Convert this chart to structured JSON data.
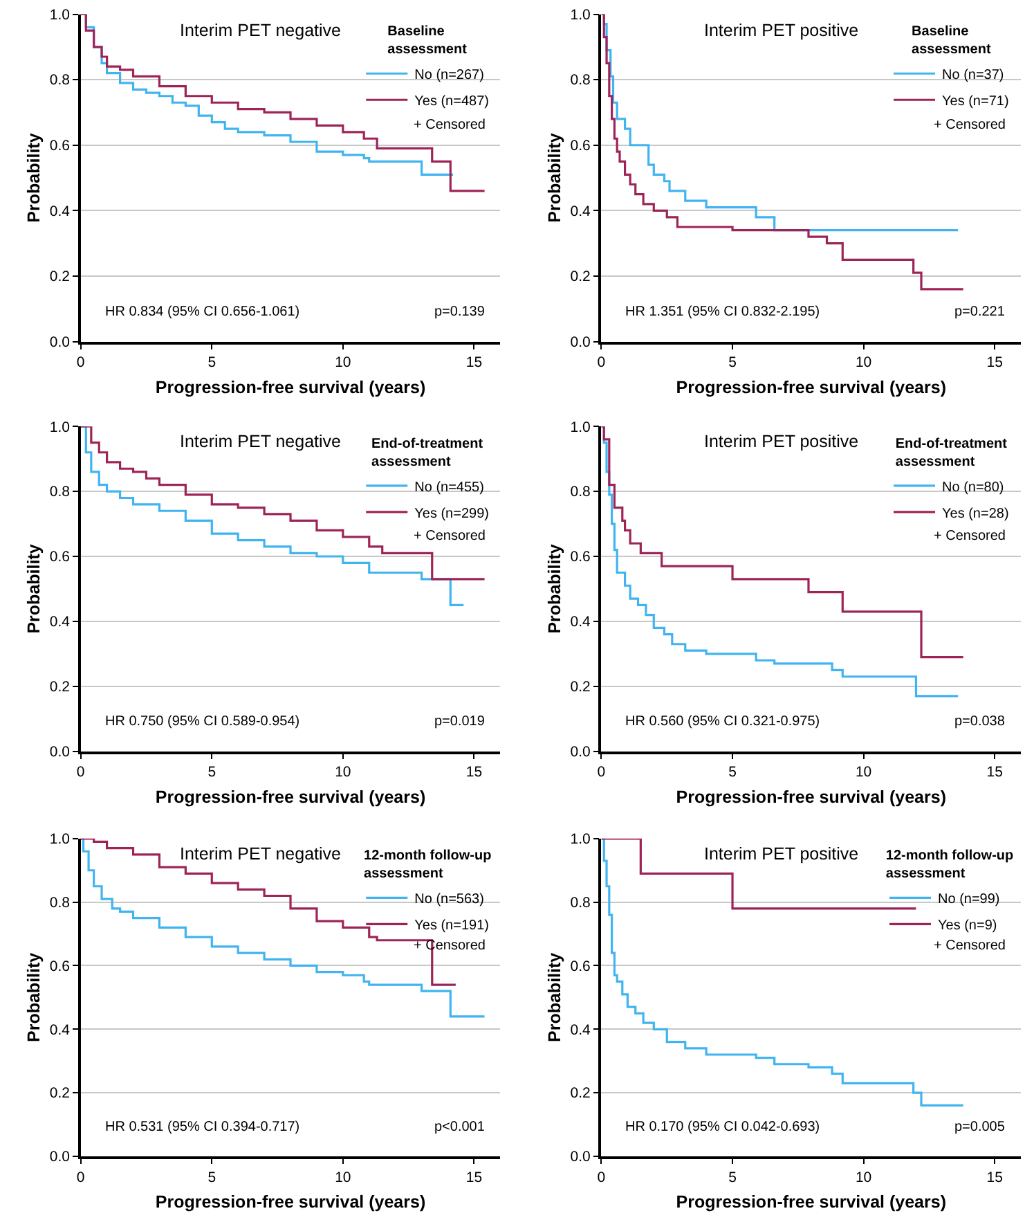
{
  "chart_data": [
    {
      "type": "step",
      "title": "Interim PET negative",
      "xlabel": "Progression-free survival (years)",
      "ylabel": "Probability",
      "legend_title": "Baseline assessment",
      "legend": "top right",
      "grid": "y",
      "marker": "none",
      "line_style": "solid",
      "xlim": [
        0,
        16
      ],
      "xticks": [
        0,
        5,
        10,
        15
      ],
      "ylim": [
        0,
        1
      ],
      "yticks": [
        {
          "value": 0,
          "label": "0.0"
        },
        {
          "value": 0.2,
          "label": "0.2"
        },
        {
          "value": 0.4,
          "label": "0.4"
        },
        {
          "value": 0.6,
          "label": "0.6"
        },
        {
          "value": 0.8,
          "label": "0.8"
        },
        {
          "value": 1,
          "label": "1.0"
        }
      ],
      "annotations": [
        "+ Censored",
        "HR 0.834 (95% CI 0.656-1.061)",
        "p=0.139"
      ],
      "series": [
        {
          "name": "No (n=267)",
          "color": "#40b4f0",
          "x": [
            0,
            0.2,
            0.5,
            0.8,
            1.0,
            1.5,
            2,
            2.5,
            3,
            3.5,
            4,
            4.5,
            5,
            5.5,
            6,
            7,
            8,
            9,
            10,
            10.8,
            11,
            12,
            13,
            14.2
          ],
          "values": [
            1,
            0.96,
            0.9,
            0.85,
            0.82,
            0.79,
            0.77,
            0.76,
            0.75,
            0.73,
            0.72,
            0.69,
            0.67,
            0.65,
            0.64,
            0.63,
            0.61,
            0.58,
            0.57,
            0.56,
            0.55,
            0.55,
            0.51,
            0.51
          ]
        },
        {
          "name": "Yes (n=487)",
          "color": "#9e2458",
          "x": [
            0,
            0.2,
            0.5,
            0.8,
            1,
            1.5,
            2,
            3,
            4,
            5,
            6,
            7,
            8,
            9,
            10,
            10.8,
            11.3,
            12,
            13.4,
            14.1,
            15.4
          ],
          "values": [
            1,
            0.95,
            0.9,
            0.87,
            0.84,
            0.83,
            0.81,
            0.78,
            0.75,
            0.73,
            0.71,
            0.7,
            0.68,
            0.66,
            0.64,
            0.62,
            0.59,
            0.59,
            0.55,
            0.46,
            0.46
          ]
        }
      ]
    },
    {
      "type": "step",
      "title": "Interim PET positive",
      "xlabel": "Progression-free survival (years)",
      "ylabel": "Probability",
      "legend_title": "Baseline assessment",
      "legend": "top right",
      "grid": "y",
      "marker": "none",
      "line_style": "solid",
      "xlim": [
        0,
        16
      ],
      "xticks": [
        0,
        5,
        10,
        15
      ],
      "ylim": [
        0,
        1
      ],
      "yticks": [
        {
          "value": 0,
          "label": "0.0"
        },
        {
          "value": 0.2,
          "label": "0.2"
        },
        {
          "value": 0.4,
          "label": "0.4"
        },
        {
          "value": 0.6,
          "label": "0.6"
        },
        {
          "value": 0.8,
          "label": "0.8"
        },
        {
          "value": 1,
          "label": "1.0"
        }
      ],
      "annotations": [
        "+ Censored",
        "HR 1.351 (95% CI 0.832-2.195)",
        "p=0.221"
      ],
      "series": [
        {
          "name": "No (n=37)",
          "color": "#40b4f0",
          "x": [
            0,
            0.1,
            0.2,
            0.35,
            0.45,
            0.6,
            0.9,
            1.1,
            1.8,
            2.0,
            2.4,
            2.6,
            3.2,
            4.0,
            5.9,
            6.6,
            13.6
          ],
          "values": [
            1,
            0.97,
            0.89,
            0.81,
            0.73,
            0.68,
            0.65,
            0.6,
            0.54,
            0.51,
            0.49,
            0.46,
            0.43,
            0.41,
            0.38,
            0.34,
            0.34
          ]
        },
        {
          "name": "Yes (n=71)",
          "color": "#9e2458",
          "x": [
            0,
            0.1,
            0.2,
            0.3,
            0.4,
            0.5,
            0.6,
            0.7,
            0.9,
            1.1,
            1.3,
            1.6,
            2.0,
            2.5,
            2.9,
            5.0,
            7.9,
            8.6,
            9.2,
            11.9,
            12.2,
            13.8
          ],
          "values": [
            1,
            0.93,
            0.85,
            0.75,
            0.68,
            0.62,
            0.58,
            0.55,
            0.51,
            0.48,
            0.45,
            0.42,
            0.4,
            0.38,
            0.35,
            0.34,
            0.32,
            0.3,
            0.25,
            0.21,
            0.16,
            0.16
          ]
        }
      ]
    },
    {
      "type": "step",
      "title": "Interim PET negative",
      "xlabel": "Progression-free survival (years)",
      "ylabel": "Probability",
      "legend_title": "End-of-treatment assessment",
      "legend": "top right",
      "grid": "y",
      "marker": "none",
      "line_style": "solid",
      "xlim": [
        0,
        16
      ],
      "xticks": [
        0,
        5,
        10,
        15
      ],
      "ylim": [
        0,
        1
      ],
      "yticks": [
        {
          "value": 0,
          "label": "0.0"
        },
        {
          "value": 0.2,
          "label": "0.2"
        },
        {
          "value": 0.4,
          "label": "0.4"
        },
        {
          "value": 0.6,
          "label": "0.6"
        },
        {
          "value": 0.8,
          "label": "0.8"
        },
        {
          "value": 1,
          "label": "1.0"
        }
      ],
      "annotations": [
        "+ Censored",
        "HR 0.750 (95% CI 0.589-0.954)",
        "p=0.019"
      ],
      "series": [
        {
          "name": "No (n=455)",
          "color": "#40b4f0",
          "x": [
            0,
            0.2,
            0.4,
            0.7,
            1,
            1.5,
            2,
            3,
            4,
            5,
            6,
            7,
            8,
            9,
            10,
            11,
            12,
            13,
            14.1,
            14.6
          ],
          "values": [
            1,
            0.92,
            0.86,
            0.82,
            0.8,
            0.78,
            0.76,
            0.74,
            0.71,
            0.67,
            0.65,
            0.63,
            0.61,
            0.6,
            0.58,
            0.55,
            0.55,
            0.53,
            0.45,
            0.45
          ]
        },
        {
          "name": "Yes (n=299)",
          "color": "#9e2458",
          "x": [
            0,
            0.4,
            0.7,
            1,
            1.5,
            2,
            2.5,
            3,
            4,
            5,
            6,
            7,
            8,
            9,
            10,
            11,
            11.5,
            13.4,
            15.4
          ],
          "values": [
            1,
            0.95,
            0.92,
            0.89,
            0.87,
            0.86,
            0.84,
            0.82,
            0.79,
            0.76,
            0.75,
            0.73,
            0.71,
            0.68,
            0.66,
            0.63,
            0.61,
            0.53,
            0.53
          ]
        }
      ]
    },
    {
      "type": "step",
      "title": "Interim PET positive",
      "xlabel": "Progression-free survival (years)",
      "ylabel": "Probability",
      "legend_title": "End-of-treatment assessment",
      "legend": "top right",
      "grid": "y",
      "marker": "none",
      "line_style": "solid",
      "xlim": [
        0,
        16
      ],
      "xticks": [
        0,
        5,
        10,
        15
      ],
      "ylim": [
        0,
        1
      ],
      "yticks": [
        {
          "value": 0,
          "label": "0.0"
        },
        {
          "value": 0.2,
          "label": "0.2"
        },
        {
          "value": 0.4,
          "label": "0.4"
        },
        {
          "value": 0.6,
          "label": "0.6"
        },
        {
          "value": 0.8,
          "label": "0.8"
        },
        {
          "value": 1,
          "label": "1.0"
        }
      ],
      "annotations": [
        "+ Censored",
        "HR 0.560 (95% CI 0.321-0.975)",
        "p=0.038"
      ],
      "series": [
        {
          "name": "No (n=80)",
          "color": "#40b4f0",
          "x": [
            0,
            0.1,
            0.2,
            0.3,
            0.4,
            0.5,
            0.6,
            0.9,
            1.1,
            1.4,
            1.7,
            2,
            2.4,
            2.7,
            3.2,
            4,
            5.9,
            6.6,
            8.8,
            9.2,
            12,
            13.6
          ],
          "values": [
            1,
            0.95,
            0.86,
            0.79,
            0.7,
            0.62,
            0.55,
            0.51,
            0.47,
            0.45,
            0.42,
            0.38,
            0.36,
            0.33,
            0.31,
            0.3,
            0.28,
            0.27,
            0.25,
            0.23,
            0.17,
            0.17
          ]
        },
        {
          "name": "Yes (n=28)",
          "color": "#9e2458",
          "x": [
            0,
            0.1,
            0.3,
            0.5,
            0.8,
            0.9,
            1.1,
            1.5,
            2.3,
            5.0,
            7.9,
            9.2,
            12.2,
            13.8
          ],
          "values": [
            1,
            0.96,
            0.82,
            0.75,
            0.71,
            0.68,
            0.64,
            0.61,
            0.57,
            0.53,
            0.49,
            0.43,
            0.29,
            0.29
          ]
        }
      ]
    },
    {
      "type": "step",
      "title": "Interim PET negative",
      "xlabel": "Progression-free survival (years)",
      "ylabel": "Probability",
      "legend_title": "12-month follow-up assessment",
      "legend": "top right",
      "grid": "y",
      "marker": "none",
      "line_style": "solid",
      "xlim": [
        0,
        16
      ],
      "xticks": [
        0,
        5,
        10,
        15
      ],
      "ylim": [
        0,
        1
      ],
      "yticks": [
        {
          "value": 0,
          "label": "0.0"
        },
        {
          "value": 0.2,
          "label": "0.2"
        },
        {
          "value": 0.4,
          "label": "0.4"
        },
        {
          "value": 0.6,
          "label": "0.6"
        },
        {
          "value": 0.8,
          "label": "0.8"
        },
        {
          "value": 1,
          "label": "1.0"
        }
      ],
      "annotations": [
        "+ Censored",
        "HR 0.531 (95% CI 0.394-0.717)",
        "p<0.001"
      ],
      "series": [
        {
          "name": "No (n=563)",
          "color": "#40b4f0",
          "x": [
            0,
            0.1,
            0.3,
            0.5,
            0.8,
            1.2,
            1.5,
            2,
            3,
            4,
            5,
            6,
            7,
            8,
            9,
            10,
            10.8,
            11,
            13,
            14.1,
            15.4
          ],
          "values": [
            1,
            0.96,
            0.9,
            0.85,
            0.81,
            0.78,
            0.77,
            0.75,
            0.72,
            0.69,
            0.66,
            0.64,
            0.62,
            0.6,
            0.58,
            0.57,
            0.55,
            0.54,
            0.52,
            0.44,
            0.44
          ]
        },
        {
          "name": "Yes (n=191)",
          "color": "#9e2458",
          "x": [
            0,
            0.5,
            1,
            2,
            3,
            4,
            5,
            6,
            7,
            8,
            9,
            10,
            11,
            11.3,
            13.4,
            14.3
          ],
          "values": [
            1,
            0.99,
            0.97,
            0.95,
            0.91,
            0.89,
            0.86,
            0.84,
            0.82,
            0.78,
            0.74,
            0.72,
            0.69,
            0.68,
            0.54,
            0.54
          ]
        }
      ]
    },
    {
      "type": "step",
      "title": "Interim PET positive",
      "xlabel": "Progression-free survival (years)",
      "ylabel": "Probability",
      "legend_title": "12-month follow-up assessment",
      "legend": "top right",
      "grid": "y",
      "marker": "none",
      "line_style": "solid",
      "xlim": [
        0,
        16
      ],
      "xticks": [
        0,
        5,
        10,
        15
      ],
      "ylim": [
        0,
        1
      ],
      "yticks": [
        {
          "value": 0,
          "label": "0.0"
        },
        {
          "value": 0.2,
          "label": "0.2"
        },
        {
          "value": 0.4,
          "label": "0.4"
        },
        {
          "value": 0.6,
          "label": "0.6"
        },
        {
          "value": 0.8,
          "label": "0.8"
        },
        {
          "value": 1,
          "label": "1.0"
        }
      ],
      "annotations": [
        "+ Censored",
        "HR 0.170 (95% CI 0.042-0.693)",
        "p=0.005"
      ],
      "series": [
        {
          "name": "No (n=99)",
          "color": "#40b4f0",
          "x": [
            0,
            0.1,
            0.2,
            0.3,
            0.4,
            0.5,
            0.6,
            0.8,
            1.0,
            1.3,
            1.6,
            2.0,
            2.5,
            3.2,
            4.0,
            5.9,
            6.6,
            7.9,
            8.8,
            9.2,
            11.9,
            12.2,
            13.8
          ],
          "values": [
            1,
            0.93,
            0.85,
            0.76,
            0.64,
            0.57,
            0.55,
            0.51,
            0.47,
            0.45,
            0.42,
            0.4,
            0.36,
            0.34,
            0.32,
            0.31,
            0.29,
            0.28,
            0.26,
            0.23,
            0.2,
            0.16,
            0.16
          ]
        },
        {
          "name": "Yes (n=9)",
          "color": "#9e2458",
          "x": [
            0,
            1.5,
            5.0,
            12.0
          ],
          "values": [
            1,
            0.89,
            0.78,
            0.78
          ]
        }
      ]
    }
  ]
}
